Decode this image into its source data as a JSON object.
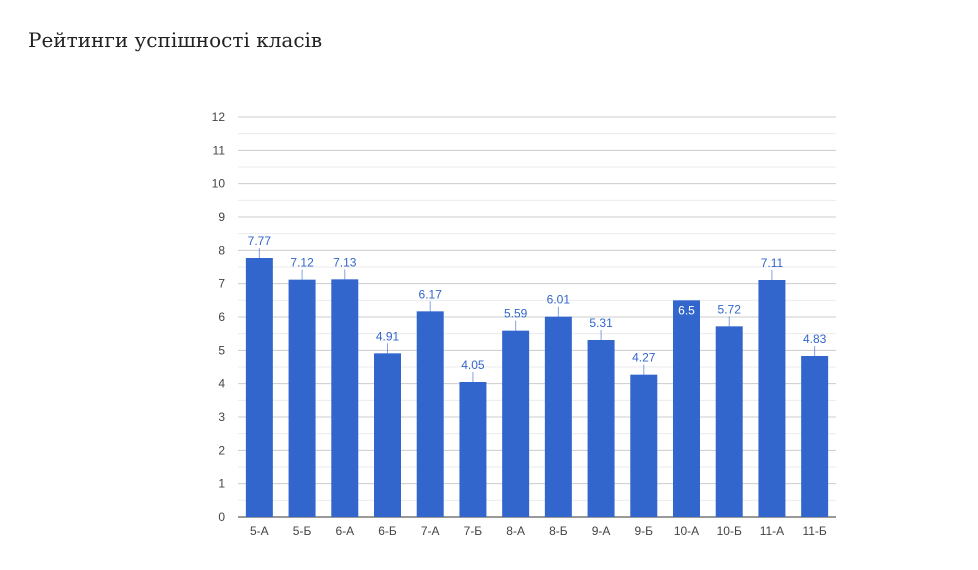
{
  "page": {
    "title": "Рейтинги успішності класів"
  },
  "chart_data": {
    "type": "bar",
    "title": "Рейтинги успішності класів",
    "xlabel": "",
    "ylabel": "",
    "categories": [
      "5-А",
      "5-Б",
      "6-А",
      "6-Б",
      "7-А",
      "7-Б",
      "8-А",
      "8-Б",
      "9-А",
      "9-Б",
      "10-А",
      "10-Б",
      "11-А",
      "11-Б"
    ],
    "values": [
      7.77,
      7.12,
      7.13,
      4.91,
      6.17,
      4.05,
      5.59,
      6.01,
      5.31,
      4.27,
      6.5,
      5.72,
      7.11,
      4.83
    ],
    "value_labels": [
      "7.77",
      "7.12",
      "7.13",
      "4.91",
      "6.17",
      "4.05",
      "5.59",
      "6.01",
      "5.31",
      "4.27",
      "6.5",
      "5.72",
      "7.11",
      "4.83"
    ],
    "ylim": [
      0,
      12
    ],
    "yticks": [
      0,
      1,
      2,
      3,
      4,
      5,
      6,
      7,
      8,
      9,
      10,
      11,
      12
    ],
    "grid": true,
    "legend": "none",
    "colors": {
      "bar": "#3366cc",
      "label": "#3366cc",
      "inside_label": "#ffffff",
      "grid": "#cccccc",
      "minor_grid": "#ebebeb",
      "axis": "#333333"
    }
  }
}
